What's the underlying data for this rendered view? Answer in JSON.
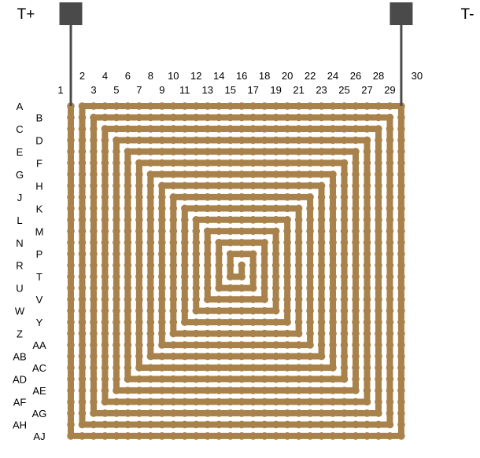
{
  "terminals": [
    {
      "label": "T+",
      "column": 1
    },
    {
      "label": "T-",
      "column": 30
    }
  ],
  "columns": [
    "1",
    "2",
    "3",
    "4",
    "5",
    "6",
    "7",
    "8",
    "9",
    "10",
    "11",
    "12",
    "13",
    "14",
    "15",
    "16",
    "17",
    "18",
    "19",
    "20",
    "21",
    "22",
    "23",
    "24",
    "25",
    "26",
    "27",
    "28",
    "29",
    "30"
  ],
  "rows": [
    "A",
    "B",
    "C",
    "D",
    "E",
    "F",
    "G",
    "H",
    "J",
    "K",
    "L",
    "M",
    "N",
    "P",
    "R",
    "T",
    "U",
    "V",
    "W",
    "Y",
    "Z",
    "AA",
    "AB",
    "AC",
    "AD",
    "AE",
    "AF",
    "AG",
    "AH",
    "AJ"
  ],
  "colors": {
    "pad": "#a8824a",
    "trace": "#4a4a4a",
    "terminal": "#4a4a4a",
    "text": "#000000"
  },
  "structure": "square spiral of 15 concentric loops"
}
